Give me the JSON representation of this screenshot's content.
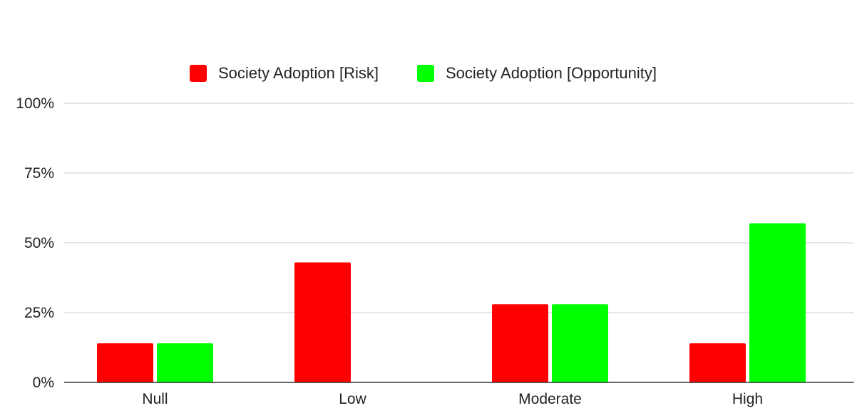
{
  "chart_data": {
    "type": "bar",
    "categories": [
      "Null",
      "Low",
      "Moderate",
      "High"
    ],
    "series": [
      {
        "name": "Society Adoption [Risk]",
        "color": "#ff0000",
        "values": [
          14,
          43,
          28,
          14
        ]
      },
      {
        "name": "Society Adoption [Opportunity]",
        "color": "#00ff00",
        "values": [
          14,
          0,
          28,
          57
        ]
      }
    ],
    "ylim": [
      0,
      100
    ],
    "yticks": [
      0,
      25,
      50,
      75,
      100
    ],
    "ytick_labels": [
      "0%",
      "25%",
      "50%",
      "75%",
      "100%"
    ],
    "grid": true,
    "legend": "top-center",
    "title": "",
    "xlabel": "",
    "ylabel": "",
    "colors": {
      "gridline": "#cccccc",
      "axis": "#333333",
      "text": "#222222"
    }
  }
}
